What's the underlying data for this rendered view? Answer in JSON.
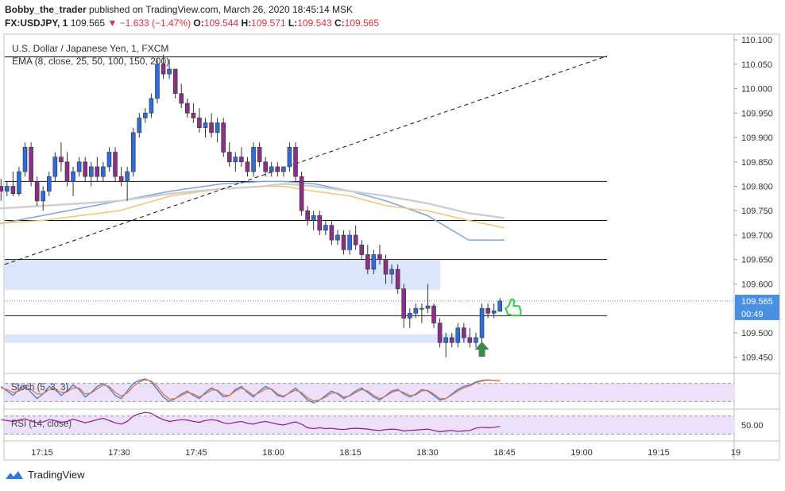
{
  "header": {
    "author": "Bobby_the_trader",
    "published_text": "published on TradingView.com, March 26, 2020 18:45:14 MSK",
    "symbol": "FX:USDJPY, 1",
    "last": "109.565",
    "change": "−1.633 (−1.47%)",
    "o_label": "O:",
    "o_val": "109.544",
    "h_label": "H:",
    "h_val": "109.571",
    "l_label": "L:",
    "l_val": "109.543",
    "c_label": "C:",
    "c_val": "109.565"
  },
  "legend": {
    "title": "U.S. Dollar / Japanese Yen, 1, FXCM",
    "ema": "EMA (8, close, 25, 50, 100, 150, 200)"
  },
  "stoch_label": "Stoch (5, 3, 3)",
  "rsi_label": "RSI (14, close)",
  "footer": {
    "brand": "TradingView"
  },
  "colors": {
    "bull": "#2f6bd9",
    "bear": "#8b2f8b",
    "ema_blue": "#7aa5e0",
    "ema_orange": "#f2c66b",
    "ema_gray": "#cfcfcf",
    "stoch_fill": "#ede0fa",
    "zone": "#dbe6fb",
    "price_tag": "#4a90e2"
  },
  "chart_data": {
    "type": "candlestick",
    "title": "U.S. Dollar / Japanese Yen, 1, FXCM",
    "y_ticks": [
      "110.100",
      "110.050",
      "110.000",
      "109.950",
      "109.900",
      "109.850",
      "109.800",
      "109.750",
      "109.700",
      "109.650",
      "109.600",
      "109.550",
      "109.500",
      "109.450"
    ],
    "ylim": [
      109.42,
      110.11
    ],
    "x_ticks": [
      "17:15",
      "17:30",
      "17:45",
      "18:00",
      "18:15",
      "18:30",
      "18:45",
      "19:00",
      "19:15",
      "19"
    ],
    "xlim_minutes": [
      0,
      140
    ],
    "x_tick_minutes": [
      15,
      30,
      45,
      60,
      75,
      90,
      105,
      120,
      135,
      150
    ],
    "last_price": "109.565",
    "countdown": "00:49",
    "horizontal_lines": [
      110.065,
      109.81,
      109.73,
      109.65,
      109.535
    ],
    "zones": [
      {
        "from_min": 0,
        "to_min": 92,
        "top": 109.648,
        "bottom": 109.588
      },
      {
        "from_min": 0,
        "to_min": 97,
        "top": 109.497,
        "bottom": 109.479
      }
    ],
    "trendline": {
      "x": [
        0,
        119
      ],
      "y": [
        109.64,
        110.067
      ]
    },
    "ema_series": [
      {
        "color": "blue",
        "x": [
          0,
          15,
          30,
          40,
          50,
          58,
          62,
          68,
          75,
          82,
          90,
          98,
          105
        ],
        "y": [
          109.71,
          109.74,
          109.77,
          109.79,
          109.805,
          109.81,
          109.81,
          109.805,
          109.79,
          109.77,
          109.74,
          109.69,
          109.69
        ]
      },
      {
        "color": "orange",
        "x": [
          0,
          15,
          30,
          40,
          50,
          58,
          62,
          68,
          75,
          82,
          90,
          98,
          105
        ],
        "y": [
          109.72,
          109.73,
          109.75,
          109.78,
          109.795,
          109.8,
          109.8,
          109.79,
          109.78,
          109.76,
          109.75,
          109.73,
          109.715
        ]
      },
      {
        "color": "gray",
        "x": [
          0,
          15,
          30,
          40,
          50,
          58,
          62,
          68,
          75,
          82,
          90,
          98,
          105
        ],
        "y": [
          109.75,
          109.76,
          109.77,
          109.785,
          109.795,
          109.8,
          109.805,
          109.8,
          109.79,
          109.78,
          109.765,
          109.745,
          109.735
        ]
      }
    ],
    "candles": [
      {
        "t": 0,
        "o": 109.8,
        "h": 109.815,
        "l": 109.77,
        "c": 109.79
      },
      {
        "t": 1,
        "o": 109.79,
        "h": 109.81,
        "l": 109.78,
        "c": 109.8
      },
      {
        "t": 2,
        "o": 109.8,
        "h": 109.83,
        "l": 109.78,
        "c": 109.785
      },
      {
        "t": 3,
        "o": 109.785,
        "h": 109.84,
        "l": 109.78,
        "c": 109.83
      },
      {
        "t": 4,
        "o": 109.83,
        "h": 109.89,
        "l": 109.82,
        "c": 109.88
      },
      {
        "t": 5,
        "o": 109.88,
        "h": 109.89,
        "l": 109.8,
        "c": 109.81
      },
      {
        "t": 6,
        "o": 109.81,
        "h": 109.82,
        "l": 109.76,
        "c": 109.77
      },
      {
        "t": 7,
        "o": 109.77,
        "h": 109.8,
        "l": 109.75,
        "c": 109.79
      },
      {
        "t": 8,
        "o": 109.79,
        "h": 109.83,
        "l": 109.78,
        "c": 109.82
      },
      {
        "t": 9,
        "o": 109.82,
        "h": 109.87,
        "l": 109.81,
        "c": 109.86
      },
      {
        "t": 10,
        "o": 109.86,
        "h": 109.89,
        "l": 109.83,
        "c": 109.85
      },
      {
        "t": 11,
        "o": 109.85,
        "h": 109.87,
        "l": 109.8,
        "c": 109.81
      },
      {
        "t": 12,
        "o": 109.81,
        "h": 109.84,
        "l": 109.78,
        "c": 109.83
      },
      {
        "t": 13,
        "o": 109.83,
        "h": 109.86,
        "l": 109.82,
        "c": 109.85
      },
      {
        "t": 14,
        "o": 109.85,
        "h": 109.86,
        "l": 109.81,
        "c": 109.82
      },
      {
        "t": 15,
        "o": 109.82,
        "h": 109.85,
        "l": 109.8,
        "c": 109.84
      },
      {
        "t": 16,
        "o": 109.84,
        "h": 109.86,
        "l": 109.81,
        "c": 109.82
      },
      {
        "t": 17,
        "o": 109.82,
        "h": 109.85,
        "l": 109.81,
        "c": 109.84
      },
      {
        "t": 18,
        "o": 109.84,
        "h": 109.88,
        "l": 109.83,
        "c": 109.87
      },
      {
        "t": 19,
        "o": 109.87,
        "h": 109.88,
        "l": 109.81,
        "c": 109.82
      },
      {
        "t": 20,
        "o": 109.82,
        "h": 109.84,
        "l": 109.8,
        "c": 109.81
      },
      {
        "t": 21,
        "o": 109.81,
        "h": 109.84,
        "l": 109.77,
        "c": 109.83
      },
      {
        "t": 22,
        "o": 109.83,
        "h": 109.92,
        "l": 109.82,
        "c": 109.91
      },
      {
        "t": 23,
        "o": 109.91,
        "h": 109.95,
        "l": 109.9,
        "c": 109.94
      },
      {
        "t": 24,
        "o": 109.94,
        "h": 109.96,
        "l": 109.93,
        "c": 109.95
      },
      {
        "t": 25,
        "o": 109.95,
        "h": 109.99,
        "l": 109.94,
        "c": 109.98
      },
      {
        "t": 26,
        "o": 109.98,
        "h": 110.06,
        "l": 109.97,
        "c": 110.05
      },
      {
        "t": 27,
        "o": 110.05,
        "h": 110.07,
        "l": 110.02,
        "c": 110.03
      },
      {
        "t": 28,
        "o": 110.03,
        "h": 110.06,
        "l": 110.02,
        "c": 110.04
      },
      {
        "t": 29,
        "o": 110.04,
        "h": 110.04,
        "l": 109.98,
        "c": 109.99
      },
      {
        "t": 30,
        "o": 109.99,
        "h": 110.01,
        "l": 109.96,
        "c": 109.97
      },
      {
        "t": 31,
        "o": 109.97,
        "h": 109.98,
        "l": 109.94,
        "c": 109.95
      },
      {
        "t": 32,
        "o": 109.95,
        "h": 109.97,
        "l": 109.93,
        "c": 109.94
      },
      {
        "t": 33,
        "o": 109.94,
        "h": 109.96,
        "l": 109.91,
        "c": 109.92
      },
      {
        "t": 34,
        "o": 109.92,
        "h": 109.94,
        "l": 109.9,
        "c": 109.93
      },
      {
        "t": 35,
        "o": 109.93,
        "h": 109.95,
        "l": 109.9,
        "c": 109.91
      },
      {
        "t": 36,
        "o": 109.91,
        "h": 109.94,
        "l": 109.89,
        "c": 109.93
      },
      {
        "t": 37,
        "o": 109.93,
        "h": 109.94,
        "l": 109.86,
        "c": 109.87
      },
      {
        "t": 38,
        "o": 109.87,
        "h": 109.89,
        "l": 109.84,
        "c": 109.85
      },
      {
        "t": 39,
        "o": 109.85,
        "h": 109.87,
        "l": 109.83,
        "c": 109.86
      },
      {
        "t": 40,
        "o": 109.86,
        "h": 109.88,
        "l": 109.84,
        "c": 109.85
      },
      {
        "t": 41,
        "o": 109.85,
        "h": 109.86,
        "l": 109.82,
        "c": 109.83
      },
      {
        "t": 42,
        "o": 109.83,
        "h": 109.89,
        "l": 109.82,
        "c": 109.88
      },
      {
        "t": 43,
        "o": 109.88,
        "h": 109.89,
        "l": 109.84,
        "c": 109.85
      },
      {
        "t": 44,
        "o": 109.85,
        "h": 109.86,
        "l": 109.82,
        "c": 109.83
      },
      {
        "t": 45,
        "o": 109.83,
        "h": 109.85,
        "l": 109.82,
        "c": 109.84
      },
      {
        "t": 46,
        "o": 109.84,
        "h": 109.85,
        "l": 109.82,
        "c": 109.83
      },
      {
        "t": 47,
        "o": 109.83,
        "h": 109.84,
        "l": 109.82,
        "c": 109.84
      },
      {
        "t": 48,
        "o": 109.84,
        "h": 109.89,
        "l": 109.83,
        "c": 109.88
      },
      {
        "t": 49,
        "o": 109.88,
        "h": 109.89,
        "l": 109.81,
        "c": 109.82
      },
      {
        "t": 50,
        "o": 109.82,
        "h": 109.83,
        "l": 109.74,
        "c": 109.75
      },
      {
        "t": 51,
        "o": 109.75,
        "h": 109.76,
        "l": 109.72,
        "c": 109.73
      },
      {
        "t": 52,
        "o": 109.73,
        "h": 109.75,
        "l": 109.71,
        "c": 109.74
      },
      {
        "t": 53,
        "o": 109.74,
        "h": 109.75,
        "l": 109.7,
        "c": 109.71
      },
      {
        "t": 54,
        "o": 109.71,
        "h": 109.73,
        "l": 109.7,
        "c": 109.72
      },
      {
        "t": 55,
        "o": 109.72,
        "h": 109.73,
        "l": 109.68,
        "c": 109.69
      },
      {
        "t": 56,
        "o": 109.69,
        "h": 109.71,
        "l": 109.68,
        "c": 109.7
      },
      {
        "t": 57,
        "o": 109.7,
        "h": 109.71,
        "l": 109.66,
        "c": 109.67
      },
      {
        "t": 58,
        "o": 109.67,
        "h": 109.71,
        "l": 109.66,
        "c": 109.7
      },
      {
        "t": 59,
        "o": 109.7,
        "h": 109.72,
        "l": 109.67,
        "c": 109.68
      },
      {
        "t": 60,
        "o": 109.68,
        "h": 109.69,
        "l": 109.65,
        "c": 109.66
      },
      {
        "t": 61,
        "o": 109.66,
        "h": 109.68,
        "l": 109.62,
        "c": 109.63
      },
      {
        "t": 62,
        "o": 109.63,
        "h": 109.67,
        "l": 109.62,
        "c": 109.66
      },
      {
        "t": 63,
        "o": 109.66,
        "h": 109.68,
        "l": 109.64,
        "c": 109.65
      },
      {
        "t": 64,
        "o": 109.65,
        "h": 109.66,
        "l": 109.6,
        "c": 109.62
      },
      {
        "t": 65,
        "o": 109.62,
        "h": 109.64,
        "l": 109.6,
        "c": 109.63
      },
      {
        "t": 66,
        "o": 109.63,
        "h": 109.64,
        "l": 109.58,
        "c": 109.59
      },
      {
        "t": 67,
        "o": 109.59,
        "h": 109.6,
        "l": 109.51,
        "c": 109.53
      },
      {
        "t": 68,
        "o": 109.53,
        "h": 109.55,
        "l": 109.51,
        "c": 109.54
      },
      {
        "t": 69,
        "o": 109.54,
        "h": 109.56,
        "l": 109.53,
        "c": 109.55
      },
      {
        "t": 70,
        "o": 109.55,
        "h": 109.56,
        "l": 109.52,
        "c": 109.55
      },
      {
        "t": 71,
        "o": 109.55,
        "h": 109.6,
        "l": 109.54,
        "c": 109.555
      },
      {
        "t": 72,
        "o": 109.555,
        "h": 109.56,
        "l": 109.51,
        "c": 109.52
      },
      {
        "t": 73,
        "o": 109.52,
        "h": 109.53,
        "l": 109.47,
        "c": 109.48
      },
      {
        "t": 74,
        "o": 109.48,
        "h": 109.5,
        "l": 109.45,
        "c": 109.49
      },
      {
        "t": 75,
        "o": 109.49,
        "h": 109.5,
        "l": 109.47,
        "c": 109.48
      },
      {
        "t": 76,
        "o": 109.48,
        "h": 109.52,
        "l": 109.47,
        "c": 109.51
      },
      {
        "t": 77,
        "o": 109.51,
        "h": 109.52,
        "l": 109.48,
        "c": 109.49
      },
      {
        "t": 78,
        "o": 109.49,
        "h": 109.51,
        "l": 109.47,
        "c": 109.48
      },
      {
        "t": 79,
        "o": 109.48,
        "h": 109.5,
        "l": 109.47,
        "c": 109.49
      },
      {
        "t": 80,
        "o": 109.49,
        "h": 109.56,
        "l": 109.48,
        "c": 109.55
      },
      {
        "t": 81,
        "o": 109.55,
        "h": 109.56,
        "l": 109.53,
        "c": 109.54
      },
      {
        "t": 82,
        "o": 109.54,
        "h": 109.56,
        "l": 109.53,
        "c": 109.545
      },
      {
        "t": 83,
        "o": 109.544,
        "h": 109.571,
        "l": 109.543,
        "c": 109.565
      }
    ],
    "stoch": {
      "label": "Stoch (5, 3, 3)",
      "k": [
        70,
        55,
        40,
        60,
        75,
        50,
        30,
        45,
        70,
        60,
        40,
        55,
        75,
        60,
        35,
        50,
        70,
        80,
        65,
        40,
        30,
        55,
        80,
        90,
        95,
        85,
        60,
        35,
        20,
        30,
        45,
        55,
        40,
        30,
        50,
        65,
        55,
        35,
        40,
        60,
        70,
        50,
        35,
        55,
        70,
        60,
        40,
        35,
        50,
        65,
        45,
        25,
        15,
        25,
        40,
        55,
        45,
        30,
        40,
        55,
        65,
        50,
        35,
        25,
        40,
        55,
        60,
        45,
        35,
        45,
        60,
        55,
        40,
        25,
        30,
        45,
        60,
        70,
        75,
        85,
        90,
        92,
        90,
        88
      ],
      "d": [
        65,
        60,
        50,
        55,
        65,
        60,
        45,
        45,
        60,
        62,
        50,
        52,
        65,
        65,
        45,
        48,
        62,
        75,
        70,
        50,
        38,
        48,
        70,
        85,
        92,
        88,
        70,
        45,
        28,
        30,
        40,
        50,
        45,
        35,
        45,
        58,
        58,
        42,
        40,
        55,
        65,
        55,
        40,
        50,
        62,
        62,
        45,
        38,
        48,
        58,
        50,
        32,
        22,
        25,
        35,
        48,
        48,
        35,
        38,
        50,
        60,
        55,
        40,
        30,
        38,
        50,
        57,
        50,
        40,
        42,
        55,
        57,
        45,
        30,
        30,
        42,
        55,
        65,
        72,
        82,
        88,
        91,
        90,
        89
      ],
      "upper": 80,
      "lower": 20
    },
    "rsi": {
      "label": "RSI (14, close)",
      "value_tick": "50.00",
      "values": [
        62,
        60,
        58,
        61,
        64,
        59,
        55,
        57,
        62,
        60,
        56,
        58,
        63,
        59,
        55,
        58,
        62,
        65,
        60,
        55,
        52,
        58,
        70,
        75,
        78,
        76,
        68,
        62,
        58,
        60,
        62,
        61,
        58,
        56,
        60,
        62,
        60,
        55,
        53,
        56,
        58,
        54,
        52,
        56,
        58,
        55,
        52,
        50,
        54,
        57,
        52,
        44,
        42,
        44,
        42,
        43,
        41,
        40,
        42,
        43,
        42,
        41,
        39,
        38,
        40,
        41,
        40,
        37,
        38,
        39,
        40,
        41,
        38,
        35,
        37,
        38,
        36,
        37,
        38,
        43,
        45,
        44,
        45,
        47
      ],
      "upper": 70,
      "lower": 30
    },
    "marker_arrow_t": 80
  }
}
